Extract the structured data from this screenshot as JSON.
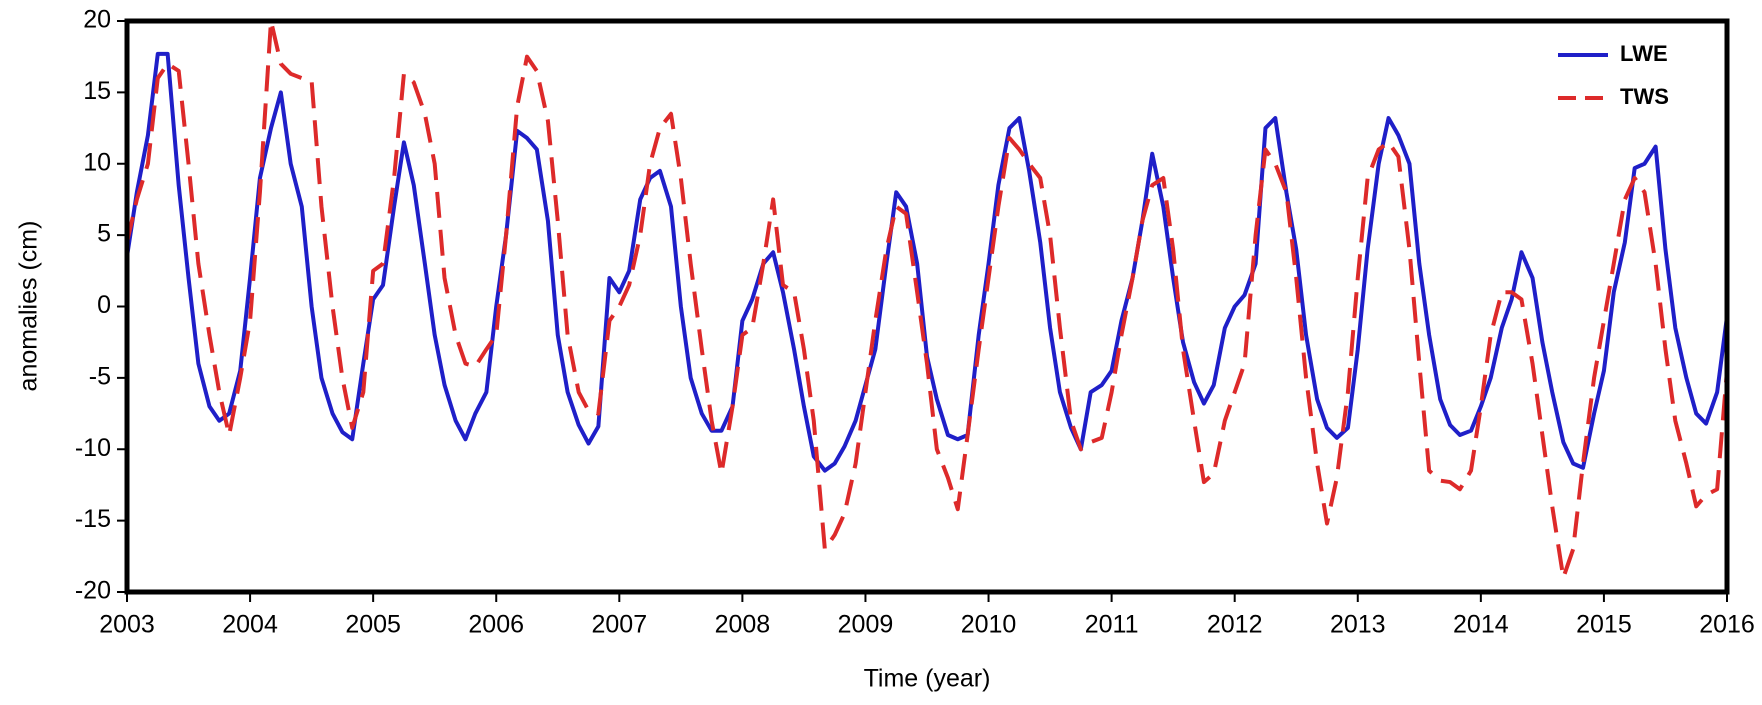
{
  "chart_data": {
    "type": "line",
    "xlabel": "Time (year)",
    "ylabel": "anomalies (cm)",
    "xlim": [
      2003,
      2016
    ],
    "xticks": [
      2003,
      2004,
      2005,
      2006,
      2007,
      2008,
      2009,
      2010,
      2011,
      2012,
      2013,
      2014,
      2015,
      2016
    ],
    "ylim": [
      -20,
      20
    ],
    "yticks": [
      -20,
      -15,
      -10,
      -5,
      0,
      5,
      10,
      15,
      20
    ],
    "legend": "upper right",
    "x": [
      2003,
      2003.08,
      2003.17,
      2003.25,
      2003.33,
      2003.42,
      2003.5,
      2003.58,
      2003.67,
      2003.75,
      2003.83,
      2003.92,
      2004,
      2004.08,
      2004.17,
      2004.25,
      2004.33,
      2004.42,
      2004.5,
      2004.58,
      2004.67,
      2004.75,
      2004.83,
      2004.92,
      2005,
      2005.08,
      2005.17,
      2005.25,
      2005.33,
      2005.42,
      2005.5,
      2005.58,
      2005.67,
      2005.75,
      2005.83,
      2005.92,
      2006,
      2006.08,
      2006.17,
      2006.25,
      2006.33,
      2006.42,
      2006.5,
      2006.58,
      2006.67,
      2006.75,
      2006.83,
      2006.92,
      2007,
      2007.08,
      2007.17,
      2007.25,
      2007.33,
      2007.42,
      2007.5,
      2007.58,
      2007.67,
      2007.75,
      2007.83,
      2007.92,
      2008,
      2008.08,
      2008.17,
      2008.25,
      2008.33,
      2008.42,
      2008.5,
      2008.58,
      2008.67,
      2008.75,
      2008.83,
      2008.92,
      2009,
      2009.08,
      2009.17,
      2009.25,
      2009.33,
      2009.42,
      2009.5,
      2009.58,
      2009.67,
      2009.75,
      2009.83,
      2009.92,
      2010,
      2010.08,
      2010.17,
      2010.25,
      2010.33,
      2010.42,
      2010.5,
      2010.58,
      2010.67,
      2010.75,
      2010.83,
      2010.92,
      2011,
      2011.08,
      2011.17,
      2011.25,
      2011.33,
      2011.42,
      2011.5,
      2011.58,
      2011.67,
      2011.75,
      2011.83,
      2011.92,
      2012,
      2012.08,
      2012.17,
      2012.25,
      2012.33,
      2012.42,
      2012.5,
      2012.58,
      2012.67,
      2012.75,
      2012.83,
      2012.92,
      2013,
      2013.08,
      2013.17,
      2013.25,
      2013.33,
      2013.42,
      2013.5,
      2013.58,
      2013.67,
      2013.75,
      2013.83,
      2013.92,
      2014,
      2014.08,
      2014.17,
      2014.25,
      2014.33,
      2014.42,
      2014.5,
      2014.58,
      2014.67,
      2014.75,
      2014.83,
      2014.92,
      2015,
      2015.08,
      2015.17,
      2015.25,
      2015.33,
      2015.42,
      2015.5,
      2015.58,
      2015.67,
      2015.75,
      2015.83,
      2015.92,
      2016
    ],
    "series": [
      {
        "name": "LWE",
        "color": "#1f1fc8",
        "dash": false,
        "values": [
          3.5,
          8,
          12,
          17.7,
          17.7,
          8.5,
          2,
          -4,
          -7,
          -8,
          -7.5,
          -4.5,
          2,
          9,
          12.5,
          15,
          10,
          7,
          0,
          -5,
          -7.5,
          -8.8,
          -9.3,
          -4,
          0.5,
          1.5,
          7,
          11.5,
          8.5,
          3,
          -2,
          -5.5,
          -8,
          -9.3,
          -7.5,
          -6,
          0,
          5,
          12.3,
          11.8,
          11,
          6,
          -2,
          -6,
          -8.3,
          -9.6,
          -8.4,
          2,
          1,
          2.5,
          7.5,
          9,
          9.5,
          7,
          0,
          -5,
          -7.5,
          -8.7,
          -8.7,
          -7,
          -1,
          0.5,
          3,
          3.8,
          1,
          -3,
          -7,
          -10.5,
          -11.5,
          -11,
          -9.8,
          -8,
          -5.5,
          -3,
          3,
          8,
          7,
          3,
          -3.5,
          -6.5,
          -9,
          -9.3,
          -9,
          -2,
          3,
          8.5,
          12.5,
          13.2,
          9.5,
          4.5,
          -1.5,
          -6,
          -8.5,
          -10,
          -6,
          -5.5,
          -4.5,
          -1,
          2,
          6,
          10.7,
          7,
          2,
          -2.5,
          -5.3,
          -6.8,
          -5.5,
          -1.5,
          0,
          0.8,
          3,
          12.5,
          13.2,
          8,
          4,
          -2,
          -6.5,
          -8.5,
          -9.2,
          -8.5,
          -3,
          4,
          10,
          13.2,
          12,
          10,
          3,
          -2,
          -6.5,
          -8.3,
          -9,
          -8.7,
          -7,
          -5,
          -1.5,
          0.5,
          3.8,
          2,
          -2.5,
          -6,
          -9.5,
          -11,
          -11.3,
          -7.5,
          -4.5,
          1,
          4.5,
          9.7,
          10,
          11.2,
          4,
          -1.5,
          -5,
          -7.5,
          -8.2,
          -6,
          -0.7
        ]
      },
      {
        "name": "TWS",
        "color": "#dd2a2a",
        "dash": true,
        "values": [
          4.5,
          7.5,
          10,
          16,
          17,
          16.5,
          10,
          3,
          -2,
          -6,
          -9,
          -5,
          -1,
          8,
          20,
          17,
          16.3,
          16,
          15.8,
          7,
          0,
          -5,
          -8.5,
          -6,
          2.5,
          3,
          9,
          16.3,
          15.7,
          13.5,
          10,
          2,
          -2,
          -4,
          -4.2,
          -3,
          -2,
          5,
          14,
          17.5,
          16.5,
          13,
          6,
          -2,
          -6,
          -7.3,
          -7.5,
          -1,
          0,
          1.5,
          5,
          10,
          12.5,
          13.5,
          9,
          3,
          -3,
          -8,
          -11.7,
          -7,
          -2,
          -1.5,
          3,
          7.5,
          1.5,
          1,
          -3,
          -8,
          -17,
          -16,
          -14.5,
          -11,
          -6,
          -1,
          4,
          7,
          6.5,
          1,
          -4,
          -10,
          -12,
          -14.2,
          -9,
          -3,
          2,
          7,
          11.8,
          11,
          10,
          9,
          5,
          -1.5,
          -8,
          -10,
          -9.5,
          -9.2,
          -6,
          -2,
          2,
          6,
          8.5,
          9,
          4,
          -3,
          -8,
          -12.3,
          -11.7,
          -8,
          -6,
          -4,
          5,
          11,
          10,
          8,
          2,
          -5,
          -11,
          -15.2,
          -12,
          -6,
          2,
          9,
          11,
          11.5,
          10.5,
          4,
          -4,
          -11.5,
          -12.2,
          -12.3,
          -12.8,
          -11.5,
          -7,
          -2,
          1,
          1,
          0.5,
          -4,
          -9,
          -14,
          -19,
          -17,
          -11,
          -5,
          -1,
          3,
          7.5,
          9,
          8,
          3,
          -3,
          -8,
          -11,
          -14,
          -13.2,
          -12.8,
          -4.5
        ]
      }
    ]
  }
}
